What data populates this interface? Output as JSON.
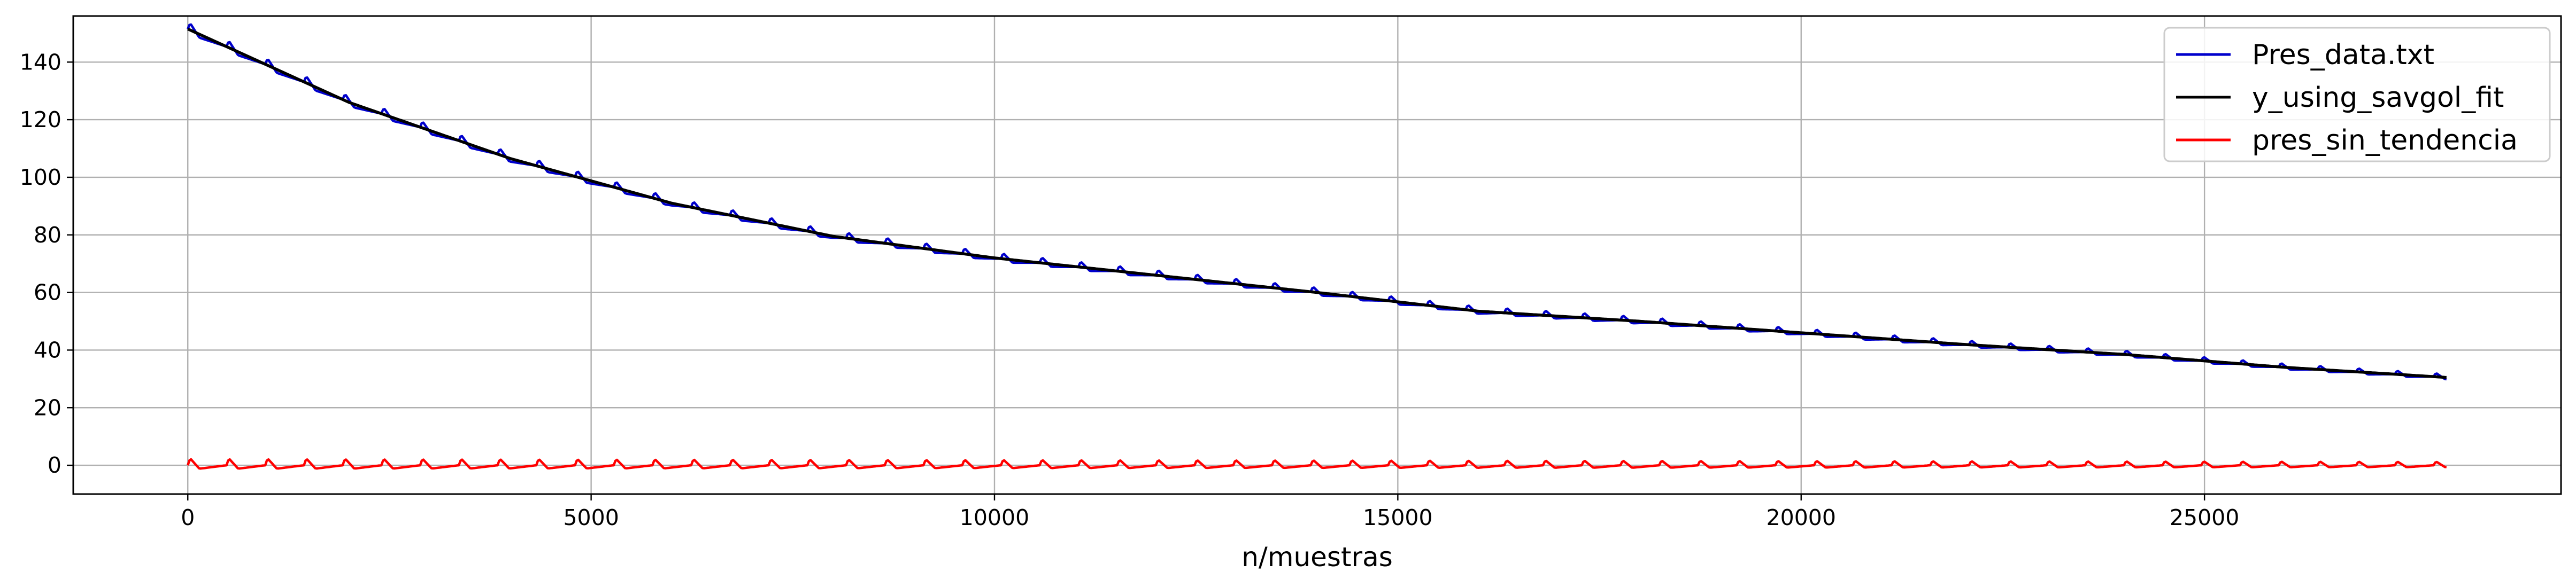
{
  "chart_data": {
    "type": "line",
    "title": "",
    "xlabel": "n/muestras",
    "ylabel": "",
    "xlim": [
      -1420,
      29420
    ],
    "ylim": [
      -10,
      156
    ],
    "xticks": [
      0,
      5000,
      10000,
      15000,
      20000,
      25000
    ],
    "yticks": [
      0,
      20,
      40,
      60,
      80,
      100,
      120,
      140
    ],
    "grid": true,
    "legend_position": "top-right",
    "series": [
      {
        "name": "Pres_data.txt",
        "color": "#0000cc",
        "x": [
          0,
          2000,
          4000,
          6000,
          8000,
          10000,
          12000,
          14000,
          16000,
          18000,
          20000,
          22000,
          24000,
          26000,
          28000
        ],
        "values": [
          151.5,
          126.0,
          106.5,
          91.0,
          79.5,
          72.0,
          66.0,
          60.0,
          53.5,
          50.0,
          46.0,
          42.0,
          38.5,
          34.0,
          30.5
        ]
      },
      {
        "name": "y_using_savgol_fit",
        "color": "#000000",
        "x": [
          0,
          2000,
          4000,
          6000,
          8000,
          10000,
          12000,
          14000,
          16000,
          18000,
          20000,
          22000,
          24000,
          26000,
          28000
        ],
        "values": [
          151.5,
          126.0,
          106.5,
          91.0,
          79.5,
          72.0,
          66.0,
          60.0,
          53.5,
          50.0,
          46.0,
          42.0,
          38.5,
          34.0,
          30.5
        ]
      },
      {
        "name": "pres_sin_tendencia",
        "color": "#ff0000",
        "x": [
          0,
          2000,
          4000,
          6000,
          8000,
          10000,
          12000,
          14000,
          16000,
          18000,
          20000,
          22000,
          24000,
          26000,
          28000
        ],
        "values": [
          0,
          0,
          0,
          0,
          0,
          0,
          0,
          0,
          0,
          0,
          0,
          0,
          0,
          0,
          0
        ]
      }
    ]
  }
}
